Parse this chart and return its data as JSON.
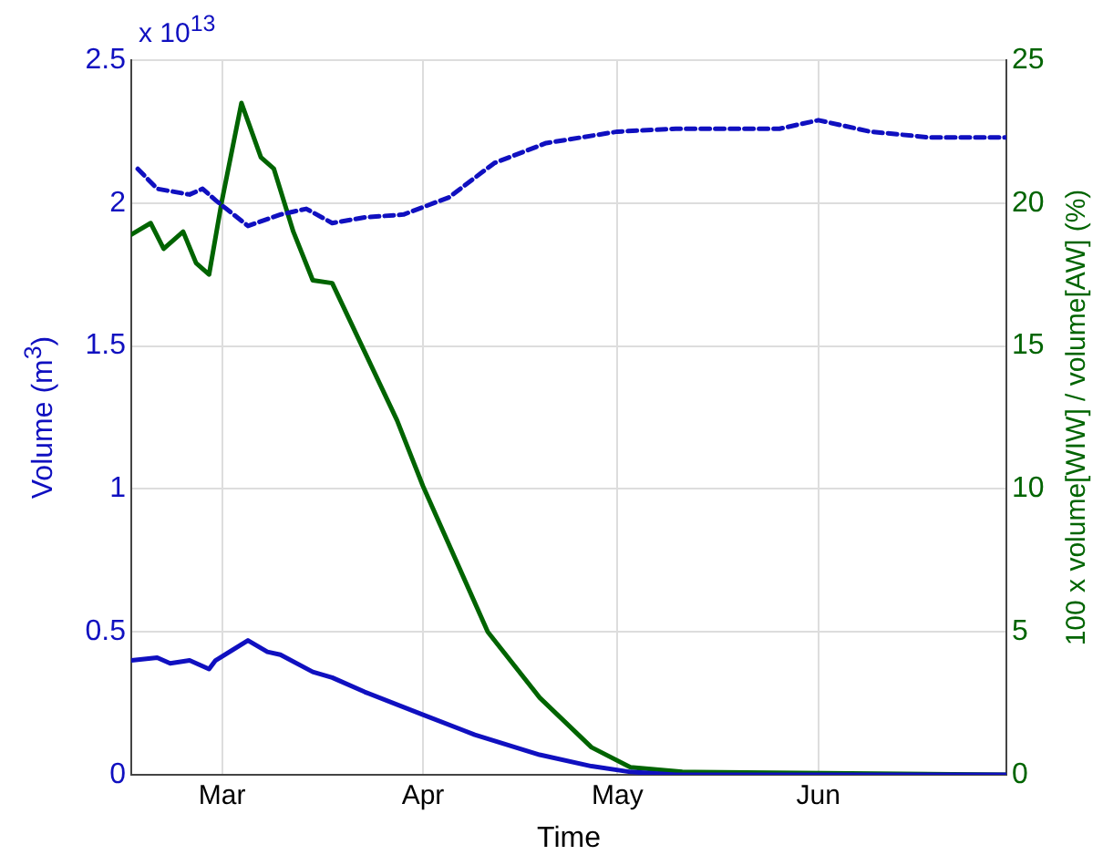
{
  "chart_data": {
    "type": "line",
    "xlabel": "Time",
    "ylabel": "Volume (m$^{3}$)",
    "y2label": "100 x volume[WIW] / volume[AW] (%)",
    "annotations": [
      "x 10$^{13}$"
    ],
    "xlim": [
      "--02-15",
      "--06-30"
    ],
    "xticks": [
      {
        "value": "--03-01",
        "label": "Mar"
      },
      {
        "value": "--04-01",
        "label": "Apr"
      },
      {
        "value": "--05-01",
        "label": "May"
      },
      {
        "value": "--06-01",
        "label": "Jun"
      }
    ],
    "ylim": [
      0,
      2.5
    ],
    "yticks": [
      0,
      0.5,
      1,
      1.5,
      2,
      2.5
    ],
    "y2lim": [
      0,
      25
    ],
    "y2ticks": [
      0,
      5,
      10,
      15,
      20,
      25
    ],
    "grid": true,
    "marker": "none",
    "series": [
      {
        "color": "#1010c0",
        "line_style": "dashed",
        "x": [
          "--02-16",
          "--02-19",
          "--02-24",
          "--02-26",
          "--02-28",
          "--03-05",
          "--03-10",
          "--03-14",
          "--03-18",
          "--03-23",
          "--03-29",
          "--04-05",
          "--04-12",
          "--04-20",
          "--05-01",
          "--05-10",
          "--05-18",
          "--05-26",
          "--06-01",
          "--06-09",
          "--06-18",
          "--06-30"
        ],
        "values": [
          2.12,
          2.05,
          2.03,
          2.05,
          2.01,
          1.92,
          1.96,
          1.98,
          1.93,
          1.95,
          1.96,
          2.02,
          2.14,
          2.21,
          2.25,
          2.26,
          2.26,
          2.26,
          2.29,
          2.25,
          2.23,
          2.23
        ]
      },
      {
        "color": "#1010c0",
        "line_style": "solid",
        "x": [
          "--02-15",
          "--02-19",
          "--02-21",
          "--02-24",
          "--02-27",
          "--02-28",
          "--03-05",
          "--03-08",
          "--03-10",
          "--03-15",
          "--03-18",
          "--03-23",
          "--04-01",
          "--04-09",
          "--04-19",
          "--04-27",
          "--05-03",
          "--05-10",
          "--06-30"
        ],
        "values": [
          0.4,
          0.41,
          0.39,
          0.4,
          0.37,
          0.4,
          0.47,
          0.43,
          0.42,
          0.36,
          0.34,
          0.29,
          0.21,
          0.14,
          0.07,
          0.03,
          0.01,
          0,
          0
        ]
      },
      {
        "color": "#006400",
        "line_style": "solid",
        "axis": "y2",
        "x": [
          "--02-15",
          "--02-18",
          "--02-20",
          "--02-23",
          "--02-25",
          "--02-27",
          "--03-01",
          "--03-04",
          "--03-07",
          "--03-09",
          "--03-12",
          "--03-15",
          "--03-18",
          "--03-23",
          "--03-28",
          "--04-01",
          "--04-11",
          "--04-19",
          "--04-27",
          "--05-03",
          "--05-11",
          "--06-30"
        ],
        "values": [
          18.9,
          19.3,
          18.4,
          19.0,
          17.9,
          17.5,
          20.1,
          23.5,
          21.6,
          21.2,
          19.0,
          17.3,
          17.2,
          14.8,
          12.4,
          10.1,
          5.0,
          2.7,
          0.96,
          0.26,
          0.1,
          0
        ]
      }
    ]
  }
}
